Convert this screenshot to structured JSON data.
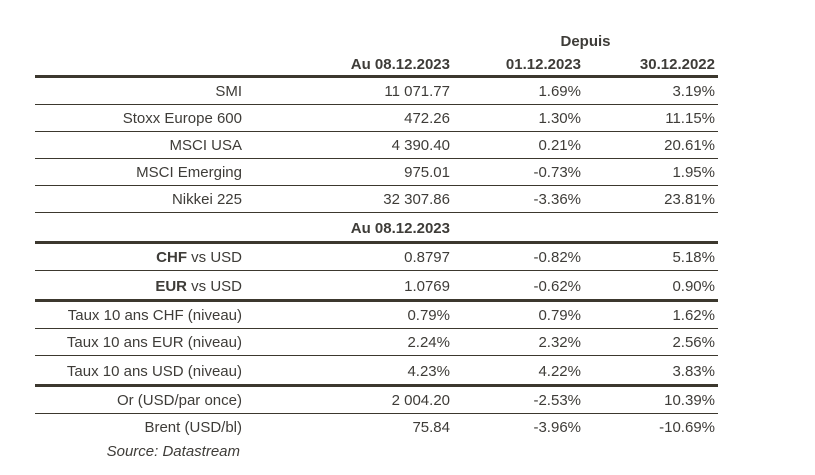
{
  "header": {
    "depuis_label": "Depuis",
    "col_value": "Au 08.12.2023",
    "col_since1": "01.12.2023",
    "col_since2": "30.12.2022"
  },
  "subheader_label": "Au 08.12.2023",
  "rows": [
    {
      "label": "SMI",
      "value": "11 071.77",
      "since1": "1.69%",
      "since2": "3.19%"
    },
    {
      "label": "Stoxx Europe 600",
      "value": "472.26",
      "since1": "1.30%",
      "since2": "11.15%"
    },
    {
      "label": "MSCI USA",
      "value": "4 390.40",
      "since1": "0.21%",
      "since2": "20.61%"
    },
    {
      "label": "MSCI Emerging",
      "value": "975.01",
      "since1": "-0.73%",
      "since2": "1.95%"
    },
    {
      "label": "Nikkei 225",
      "value": "32 307.86",
      "since1": "-3.36%",
      "since2": "23.81%"
    },
    {
      "label_bold": "CHF",
      "label_rest": " vs USD",
      "value": "0.8797",
      "since1": "-0.82%",
      "since2": "5.18%"
    },
    {
      "label_bold": "EUR",
      "label_rest": " vs USD",
      "value": "1.0769",
      "since1": "-0.62%",
      "since2": "0.90%"
    },
    {
      "label": "Taux 10 ans CHF (niveau)",
      "value": "0.79%",
      "since1": "0.79%",
      "since2": "1.62%"
    },
    {
      "label": "Taux 10 ans EUR (niveau)",
      "value": "2.24%",
      "since1": "2.32%",
      "since2": "2.56%"
    },
    {
      "label": "Taux 10 ans USD (niveau)",
      "value": "4.23%",
      "since1": "4.22%",
      "since2": "3.83%"
    },
    {
      "label": "Or (USD/par once)",
      "value": "2 004.20",
      "since1": "-2.53%",
      "since2": "10.39%"
    },
    {
      "label": "Brent (USD/bl)",
      "value": "75.84",
      "since1": "-3.96%",
      "since2": "-10.69%"
    }
  ],
  "source_note": "Source: Datastream",
  "colors": {
    "text": "#3e3c38",
    "rule": "#3c382e",
    "background": "#ffffff"
  }
}
